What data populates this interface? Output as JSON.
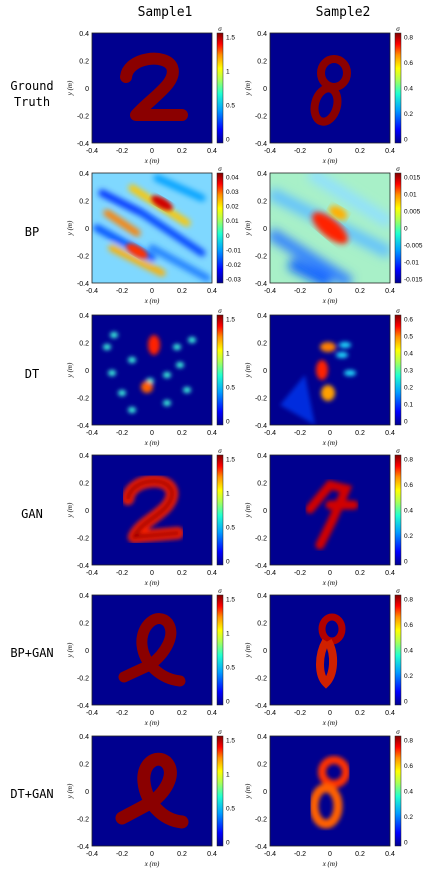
{
  "columns": [
    "Sample1",
    "Sample2"
  ],
  "axis": {
    "xlabel": "x (m)",
    "ylabel": "y (m)",
    "xticks": [
      "-0.4",
      "-0.2",
      "0",
      "0.2",
      "0.4"
    ],
    "yticks": [
      "0.4",
      "0.2",
      "0",
      "-0.2",
      "-0.4"
    ],
    "colorbar_title": "σ"
  },
  "colormap": [
    "#00008f",
    "#0000ff",
    "#00a0ff",
    "#20ffd0",
    "#b0ff50",
    "#ffff00",
    "#ff9000",
    "#ff0000",
    "#800000"
  ],
  "background_color": "#00008f",
  "rows": [
    {
      "label_lines": [
        "Ground",
        "Truth"
      ],
      "cb1": [
        "1.5",
        "1",
        "0.5",
        "0"
      ],
      "cb2": [
        "0.8",
        "0.6",
        "0.4",
        "0.2",
        "0"
      ]
    },
    {
      "label_lines": [
        "BP"
      ],
      "cb1": [
        "0.04",
        "0.03",
        "0.02",
        "0.01",
        "0",
        "-0.01",
        "-0.02",
        "-0.03"
      ],
      "cb2": [
        "0.015",
        "0.01",
        "0.005",
        "0",
        "-0.005",
        "-0.01",
        "-0.015"
      ]
    },
    {
      "label_lines": [
        "DT"
      ],
      "cb1": [
        "1.5",
        "1",
        "0.5",
        "0"
      ],
      "cb2": [
        "0.6",
        "0.5",
        "0.4",
        "0.3",
        "0.2",
        "0.1",
        "0"
      ]
    },
    {
      "label_lines": [
        "GAN"
      ],
      "cb1": [
        "1.5",
        "1",
        "0.5",
        "0"
      ],
      "cb2": [
        "0.8",
        "0.6",
        "0.4",
        "0.2",
        "0"
      ]
    },
    {
      "label_lines": [
        "BP+GAN"
      ],
      "cb1": [
        "1.5",
        "1",
        "0.5",
        "0"
      ],
      "cb2": [
        "0.8",
        "0.6",
        "0.4",
        "0.2",
        "0"
      ]
    },
    {
      "label_lines": [
        "DT+GAN"
      ],
      "cb1": [
        "1.5",
        "1",
        "0.5",
        "0"
      ],
      "cb2": [
        "0.8",
        "0.6",
        "0.4",
        "0.2",
        "0"
      ]
    }
  ]
}
